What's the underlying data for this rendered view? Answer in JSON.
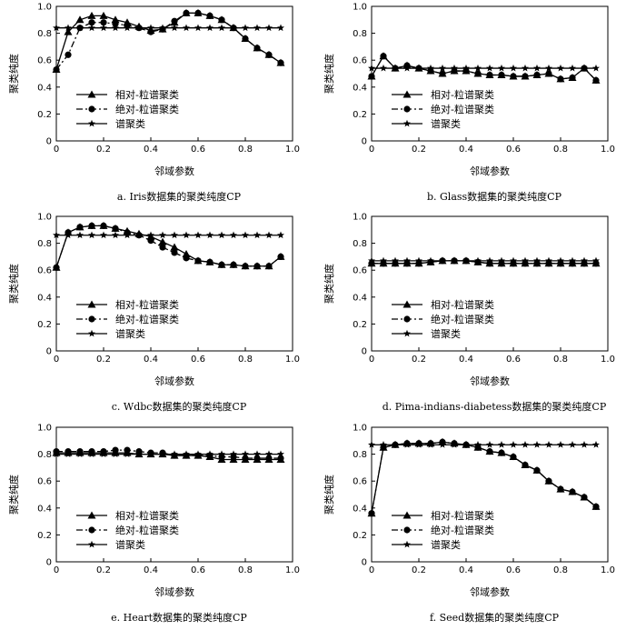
{
  "chart_data": [
    {
      "type": "line",
      "title": "a.  Iris数据集的聚类纯度CP",
      "xlabel": "邻域参数",
      "ylabel": "聚类纯度",
      "xlim": [
        0,
        1.0
      ],
      "ylim": [
        0,
        1.0
      ],
      "xticks": [
        "0",
        "0.2",
        "0.4",
        "0.6",
        "0.8",
        "1.0"
      ],
      "yticks": [
        "0",
        "0.2",
        "0.4",
        "0.6",
        "0.8",
        "1.0"
      ],
      "legend_position": "lower-left",
      "x": [
        0,
        0.05,
        0.1,
        0.15,
        0.2,
        0.25,
        0.3,
        0.35,
        0.4,
        0.45,
        0.5,
        0.55,
        0.6,
        0.65,
        0.7,
        0.75,
        0.8,
        0.85,
        0.9,
        0.95
      ],
      "series": [
        {
          "name": "相对-粒谱聚类",
          "marker": "triangle",
          "line": "solid",
          "values": [
            0.53,
            0.81,
            0.9,
            0.93,
            0.93,
            0.9,
            0.88,
            0.85,
            0.82,
            0.83,
            0.88,
            0.95,
            0.95,
            0.93,
            0.9,
            0.84,
            0.76,
            0.69,
            0.64,
            0.58
          ]
        },
        {
          "name": "绝对-粒谱聚类",
          "marker": "circle",
          "line": "dashdot",
          "values": [
            0.53,
            0.64,
            0.84,
            0.88,
            0.88,
            0.87,
            0.86,
            0.84,
            0.81,
            0.83,
            0.89,
            0.95,
            0.95,
            0.93,
            0.9,
            0.84,
            0.76,
            0.69,
            0.64,
            0.58
          ]
        },
        {
          "name": "谱聚类",
          "marker": "star",
          "line": "solid",
          "values": [
            0.84,
            0.84,
            0.84,
            0.84,
            0.84,
            0.84,
            0.84,
            0.84,
            0.84,
            0.84,
            0.84,
            0.84,
            0.84,
            0.84,
            0.84,
            0.84,
            0.84,
            0.84,
            0.84,
            0.84
          ]
        }
      ]
    },
    {
      "type": "line",
      "title": "b.  Glass数据集的聚类纯度CP",
      "xlabel": "邻域参数",
      "ylabel": "聚类纯度",
      "xlim": [
        0,
        1.0
      ],
      "ylim": [
        0,
        1.0
      ],
      "xticks": [
        "0",
        "0.2",
        "0.4",
        "0.6",
        "0.8",
        "1.0"
      ],
      "yticks": [
        "0",
        "0.2",
        "0.4",
        "0.6",
        "0.8",
        "1.0"
      ],
      "legend_position": "lower-left",
      "x": [
        0,
        0.05,
        0.1,
        0.15,
        0.2,
        0.25,
        0.3,
        0.35,
        0.4,
        0.45,
        0.5,
        0.55,
        0.6,
        0.65,
        0.7,
        0.75,
        0.8,
        0.85,
        0.9,
        0.95
      ],
      "series": [
        {
          "name": "相对-粒谱聚类",
          "marker": "triangle",
          "line": "solid",
          "values": [
            0.48,
            0.63,
            0.54,
            0.56,
            0.54,
            0.52,
            0.5,
            0.52,
            0.52,
            0.5,
            0.49,
            0.49,
            0.48,
            0.48,
            0.49,
            0.5,
            0.46,
            0.47,
            0.54,
            0.45
          ]
        },
        {
          "name": "绝对-粒谱聚类",
          "marker": "circle",
          "line": "dashdot",
          "values": [
            0.48,
            0.63,
            0.54,
            0.56,
            0.54,
            0.52,
            0.5,
            0.52,
            0.52,
            0.5,
            0.49,
            0.49,
            0.48,
            0.48,
            0.49,
            0.5,
            0.46,
            0.47,
            0.54,
            0.45
          ]
        },
        {
          "name": "谱聚类",
          "marker": "star",
          "line": "solid",
          "values": [
            0.54,
            0.54,
            0.54,
            0.54,
            0.54,
            0.54,
            0.54,
            0.54,
            0.54,
            0.54,
            0.54,
            0.54,
            0.54,
            0.54,
            0.54,
            0.54,
            0.54,
            0.54,
            0.54,
            0.54
          ]
        }
      ]
    },
    {
      "type": "line",
      "title": "c.  Wdbc数据集的聚类纯度CP",
      "xlabel": "邻域参数",
      "ylabel": "聚类纯度",
      "xlim": [
        0,
        1.0
      ],
      "ylim": [
        0,
        1.0
      ],
      "xticks": [
        "0",
        "0.2",
        "0.4",
        "0.6",
        "0.8",
        "1.0"
      ],
      "yticks": [
        "0",
        "0.2",
        "0.4",
        "0.6",
        "0.8",
        "1.0"
      ],
      "legend_position": "lower-left",
      "x": [
        0,
        0.05,
        0.1,
        0.15,
        0.2,
        0.25,
        0.3,
        0.35,
        0.4,
        0.45,
        0.5,
        0.55,
        0.6,
        0.65,
        0.7,
        0.75,
        0.8,
        0.85,
        0.9,
        0.95
      ],
      "series": [
        {
          "name": "相对-粒谱聚类",
          "marker": "triangle",
          "line": "solid",
          "values": [
            0.62,
            0.88,
            0.92,
            0.93,
            0.93,
            0.91,
            0.89,
            0.87,
            0.85,
            0.81,
            0.77,
            0.72,
            0.67,
            0.66,
            0.64,
            0.64,
            0.63,
            0.63,
            0.63,
            0.7
          ]
        },
        {
          "name": "绝对-粒谱聚类",
          "marker": "circle",
          "line": "dashdot",
          "values": [
            0.62,
            0.88,
            0.92,
            0.93,
            0.93,
            0.91,
            0.88,
            0.86,
            0.82,
            0.77,
            0.73,
            0.69,
            0.67,
            0.66,
            0.64,
            0.64,
            0.63,
            0.63,
            0.63,
            0.7
          ]
        },
        {
          "name": "谱聚类",
          "marker": "star",
          "line": "solid",
          "values": [
            0.86,
            0.86,
            0.86,
            0.86,
            0.86,
            0.86,
            0.86,
            0.86,
            0.86,
            0.86,
            0.86,
            0.86,
            0.86,
            0.86,
            0.86,
            0.86,
            0.86,
            0.86,
            0.86,
            0.86
          ]
        }
      ]
    },
    {
      "type": "line",
      "title": "d.  Pima-indians-diabetess数据集的聚类纯度CP",
      "xlabel": "邻域参数",
      "ylabel": "聚类纯度",
      "xlim": [
        0,
        1.0
      ],
      "ylim": [
        0,
        1.0
      ],
      "xticks": [
        "0",
        "0.2",
        "0.4",
        "0.6",
        "0.8",
        "1.0"
      ],
      "yticks": [
        "0",
        "0.2",
        "0.4",
        "0.6",
        "0.8",
        "1.0"
      ],
      "legend_position": "lower-left",
      "x": [
        0,
        0.05,
        0.1,
        0.15,
        0.2,
        0.25,
        0.3,
        0.35,
        0.4,
        0.45,
        0.5,
        0.55,
        0.6,
        0.65,
        0.7,
        0.75,
        0.8,
        0.85,
        0.9,
        0.95
      ],
      "series": [
        {
          "name": "相对-粒谱聚类",
          "marker": "triangle",
          "line": "solid",
          "values": [
            0.65,
            0.65,
            0.65,
            0.65,
            0.65,
            0.66,
            0.67,
            0.67,
            0.67,
            0.66,
            0.65,
            0.65,
            0.65,
            0.65,
            0.65,
            0.65,
            0.65,
            0.65,
            0.65,
            0.65
          ]
        },
        {
          "name": "绝对-粒谱聚类",
          "marker": "circle",
          "line": "dashdot",
          "values": [
            0.65,
            0.65,
            0.65,
            0.65,
            0.65,
            0.66,
            0.67,
            0.67,
            0.67,
            0.66,
            0.65,
            0.65,
            0.65,
            0.65,
            0.65,
            0.65,
            0.65,
            0.65,
            0.65,
            0.65
          ]
        },
        {
          "name": "谱聚类",
          "marker": "star",
          "line": "solid",
          "values": [
            0.67,
            0.67,
            0.67,
            0.67,
            0.67,
            0.67,
            0.67,
            0.67,
            0.67,
            0.67,
            0.67,
            0.67,
            0.67,
            0.67,
            0.67,
            0.67,
            0.67,
            0.67,
            0.67,
            0.67
          ]
        }
      ]
    },
    {
      "type": "line",
      "title": "e.  Heart数据集的聚类纯度CP",
      "xlabel": "邻域参数",
      "ylabel": "聚类纯度",
      "xlim": [
        0,
        1.0
      ],
      "ylim": [
        0,
        1.0
      ],
      "xticks": [
        "0",
        "0.2",
        "0.4",
        "0.6",
        "0.8",
        "1.0"
      ],
      "yticks": [
        "0",
        "0.2",
        "0.4",
        "0.6",
        "0.8",
        "1.0"
      ],
      "legend_position": "lower-left",
      "x": [
        0,
        0.05,
        0.1,
        0.15,
        0.2,
        0.25,
        0.3,
        0.35,
        0.4,
        0.45,
        0.5,
        0.55,
        0.6,
        0.65,
        0.7,
        0.75,
        0.8,
        0.85,
        0.9,
        0.95
      ],
      "series": [
        {
          "name": "相对-粒谱聚类",
          "marker": "triangle",
          "line": "solid",
          "values": [
            0.81,
            0.81,
            0.81,
            0.81,
            0.81,
            0.81,
            0.81,
            0.8,
            0.8,
            0.8,
            0.79,
            0.79,
            0.79,
            0.78,
            0.76,
            0.76,
            0.76,
            0.76,
            0.76,
            0.76
          ]
        },
        {
          "name": "绝对-粒谱聚类",
          "marker": "circle",
          "line": "dashdot",
          "values": [
            0.82,
            0.82,
            0.82,
            0.82,
            0.82,
            0.83,
            0.83,
            0.82,
            0.81,
            0.81,
            0.79,
            0.79,
            0.79,
            0.79,
            0.78,
            0.78,
            0.77,
            0.77,
            0.77,
            0.77
          ]
        },
        {
          "name": "谱聚类",
          "marker": "star",
          "line": "solid",
          "values": [
            0.8,
            0.8,
            0.8,
            0.8,
            0.8,
            0.8,
            0.8,
            0.8,
            0.8,
            0.8,
            0.8,
            0.8,
            0.8,
            0.8,
            0.8,
            0.8,
            0.8,
            0.8,
            0.8,
            0.8
          ]
        }
      ]
    },
    {
      "type": "line",
      "title": "f.  Seed数据集的聚类纯度CP",
      "xlabel": "邻域参数",
      "ylabel": "聚类纯度",
      "xlim": [
        0,
        1.0
      ],
      "ylim": [
        0,
        1.0
      ],
      "xticks": [
        "0",
        "0.2",
        "0.4",
        "0.6",
        "0.8",
        "1.0"
      ],
      "yticks": [
        "0",
        "0.2",
        "0.4",
        "0.6",
        "0.8",
        "1.0"
      ],
      "legend_position": "lower-left",
      "x": [
        0,
        0.05,
        0.1,
        0.15,
        0.2,
        0.25,
        0.3,
        0.35,
        0.4,
        0.45,
        0.5,
        0.55,
        0.6,
        0.65,
        0.7,
        0.75,
        0.8,
        0.85,
        0.9,
        0.95
      ],
      "series": [
        {
          "name": "相对-粒谱聚类",
          "marker": "triangle",
          "line": "solid",
          "values": [
            0.36,
            0.85,
            0.87,
            0.88,
            0.88,
            0.88,
            0.89,
            0.88,
            0.87,
            0.85,
            0.82,
            0.81,
            0.78,
            0.72,
            0.68,
            0.6,
            0.54,
            0.52,
            0.48,
            0.41
          ]
        },
        {
          "name": "绝对-粒谱聚类",
          "marker": "circle",
          "line": "dashdot",
          "values": [
            0.36,
            0.85,
            0.87,
            0.88,
            0.88,
            0.88,
            0.89,
            0.88,
            0.87,
            0.85,
            0.82,
            0.81,
            0.78,
            0.72,
            0.68,
            0.6,
            0.54,
            0.52,
            0.48,
            0.41
          ]
        },
        {
          "name": "谱聚类",
          "marker": "star",
          "line": "solid",
          "values": [
            0.87,
            0.87,
            0.87,
            0.87,
            0.87,
            0.87,
            0.87,
            0.87,
            0.87,
            0.87,
            0.87,
            0.87,
            0.87,
            0.87,
            0.87,
            0.87,
            0.87,
            0.87,
            0.87,
            0.87
          ]
        }
      ]
    }
  ]
}
